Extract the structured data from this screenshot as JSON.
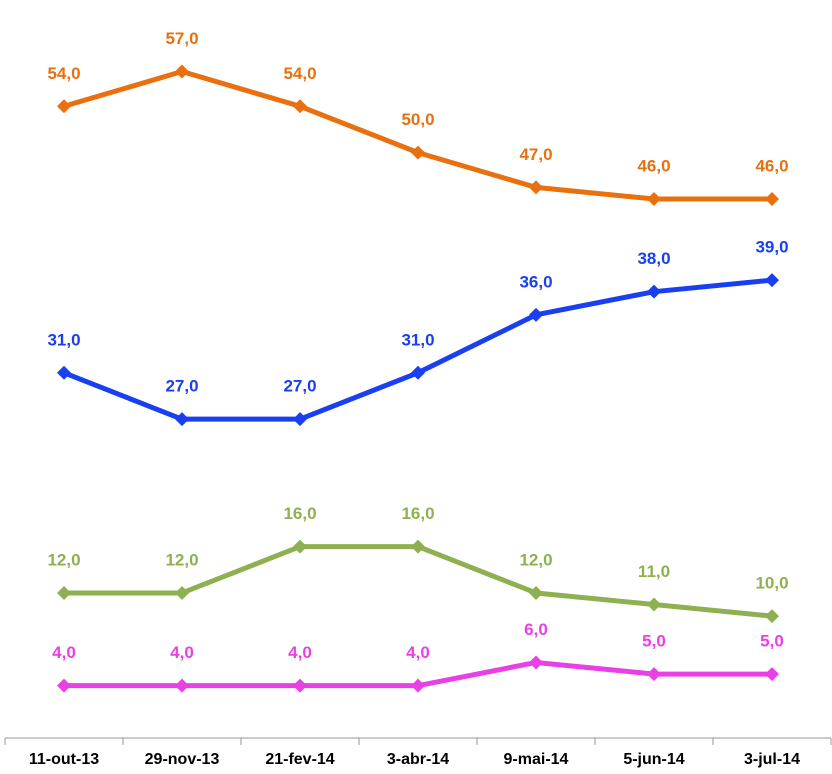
{
  "chart_data": {
    "type": "line",
    "categories": [
      "11-out-13",
      "29-nov-13",
      "21-fev-14",
      "3-abr-14",
      "9-mai-14",
      "5-jun-14",
      "3-jul-14"
    ],
    "series": [
      {
        "color": "#e8700f",
        "values": [
          54,
          57,
          54,
          50,
          47,
          46,
          46
        ],
        "value_labels": [
          "54,0",
          "57,0",
          "54,0",
          "50,0",
          "47,0",
          "46,0",
          "46,0"
        ]
      },
      {
        "color": "#1a3ff0",
        "values": [
          31,
          27,
          27,
          31,
          36,
          38,
          39
        ],
        "value_labels": [
          "31,0",
          "27,0",
          "27,0",
          "31,0",
          "36,0",
          "38,0",
          "39,0"
        ]
      },
      {
        "color": "#8fb050",
        "values": [
          12,
          12,
          16,
          16,
          12,
          11,
          10
        ],
        "value_labels": [
          "12,0",
          "12,0",
          "16,0",
          "16,0",
          "12,0",
          "11,0",
          "10,0"
        ]
      },
      {
        "color": "#e940e6",
        "values": [
          4,
          4,
          4,
          4,
          6,
          5,
          5
        ],
        "value_labels": [
          "4,0",
          "4,0",
          "4,0",
          "4,0",
          "6,0",
          "5,0",
          "5,0"
        ]
      }
    ],
    "ylim": [
      0,
      63
    ]
  }
}
